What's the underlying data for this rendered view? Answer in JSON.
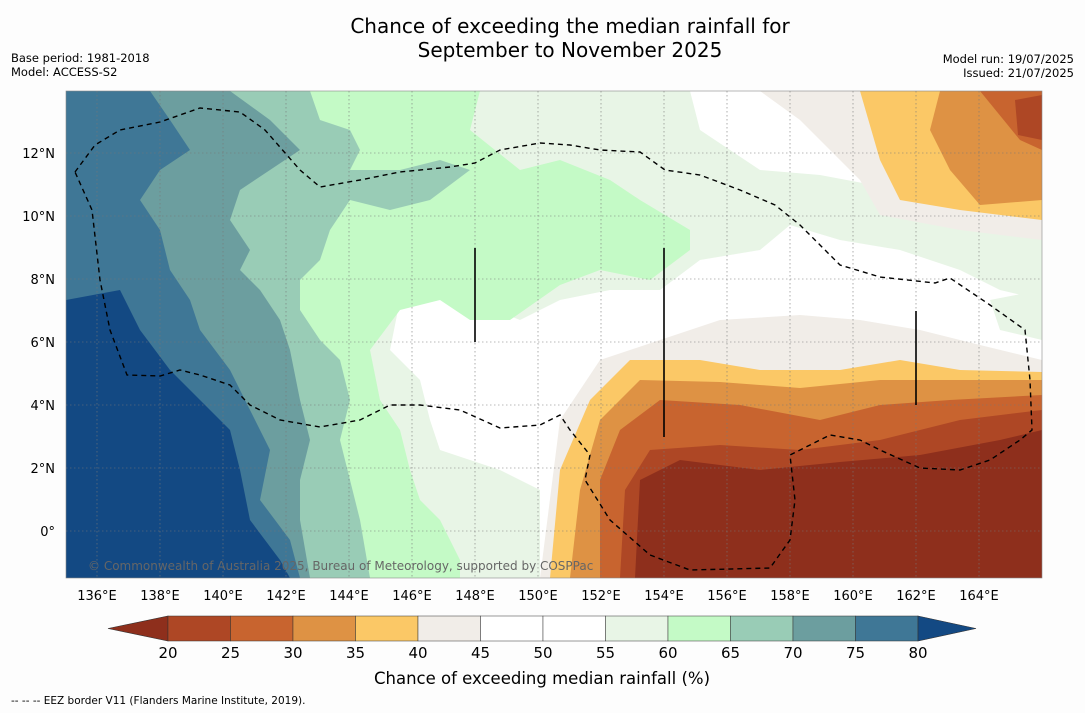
{
  "title_line1": "Chance of exceeding the median rainfall for",
  "title_line2": "September to November 2025",
  "base_period": "Base period: 1981-2018",
  "model": "Model: ACCESS-S2",
  "model_run": "Model run: 19/07/2025",
  "issued": "Issued: 21/07/2025",
  "credit": "© Commonwealth of Australia 2025, Bureau of Meteorology, supported by COSPPac",
  "footer": "-- -- -- EEZ border V11 (Flanders Marine Institute, 2019).",
  "map": {
    "lon_range": [
      135,
      166
    ],
    "lat_range": [
      -1.5,
      14
    ],
    "lon_ticks": [
      "136°E",
      "138°E",
      "140°E",
      "142°E",
      "144°E",
      "146°E",
      "148°E",
      "150°E",
      "152°E",
      "154°E",
      "156°E",
      "158°E",
      "160°E",
      "162°E",
      "164°E"
    ],
    "lat_ticks": [
      "0°",
      "2°N",
      "4°N",
      "6°N",
      "8°N",
      "10°N",
      "12°N"
    ],
    "grid": true,
    "overlay": "EEZ border (dashed)"
  },
  "colorbar": {
    "label": "Chance of exceeding median rainfall (%)",
    "ticks": [
      "20",
      "25",
      "30",
      "35",
      "40",
      "45",
      "50",
      "55",
      "60",
      "65",
      "70",
      "75",
      "80"
    ],
    "colors": [
      "#8e2f1c",
      "#ae4725",
      "#c8642f",
      "#de9244",
      "#fbc866",
      "#f1ede8",
      "#ffffff",
      "#ffffff",
      "#e8f5e6",
      "#c4fac6",
      "#99ccb6",
      "#6c9e9f",
      "#3f7796",
      "#134983"
    ],
    "extend": "both"
  }
}
